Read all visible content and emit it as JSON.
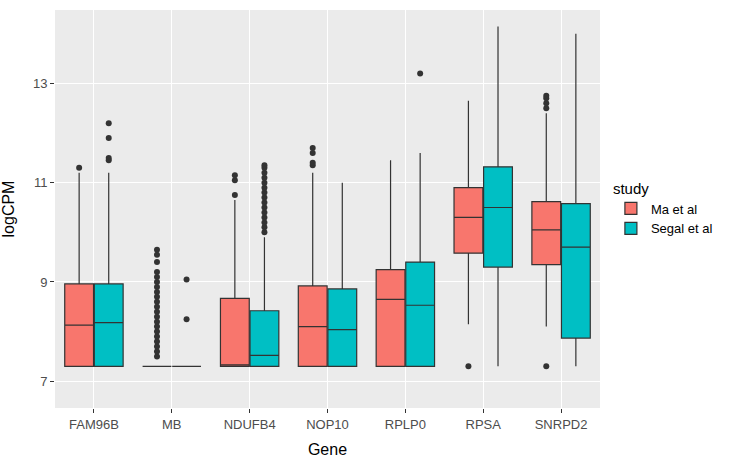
{
  "chart_data": {
    "type": "box",
    "x_label": "Gene",
    "y_label": "logCPM",
    "legend_title": "study",
    "legend": "right",
    "grid": true,
    "categories": [
      "FAM96B",
      "MB",
      "NDUFB4",
      "NOP10",
      "RPLP0",
      "RPSA",
      "SNRPD2"
    ],
    "ylim": [
      6.46,
      14.48
    ],
    "yticks": [
      7,
      9,
      11,
      13
    ],
    "series": [
      {
        "name": "Ma et al",
        "color": "#F8766D",
        "lowerfence": [
          7.3,
          7.3,
          7.3,
          7.3,
          7.3,
          8.15,
          8.1
        ],
        "q1": [
          7.3,
          7.3,
          7.3,
          7.3,
          7.3,
          9.58,
          9.35
        ],
        "median": [
          8.13,
          7.3,
          7.33,
          8.1,
          8.65,
          10.3,
          10.05
        ],
        "q3": [
          8.96,
          7.3,
          8.67,
          8.92,
          9.25,
          10.9,
          10.62
        ],
        "upperfence": [
          11.2,
          7.3,
          10.65,
          11.2,
          11.45,
          12.65,
          12.4
        ],
        "outliers": [
          [
            11.3
          ],
          [
            7.5,
            7.6,
            7.7,
            7.8,
            7.9,
            8.0,
            8.1,
            8.2,
            8.3,
            8.4,
            8.5,
            8.6,
            8.7,
            8.8,
            8.9,
            9.0,
            9.1,
            9.2,
            9.4,
            9.55,
            9.65
          ],
          [
            10.75,
            11.05,
            11.15
          ],
          [
            11.35,
            11.4,
            11.6,
            11.7
          ],
          [],
          [
            7.3
          ],
          [
            7.3,
            12.5,
            12.6,
            12.7,
            12.75
          ]
        ]
      },
      {
        "name": "Segal et al",
        "color": "#00BFC4",
        "lowerfence": [
          7.3,
          7.3,
          7.3,
          7.3,
          7.3,
          7.3,
          7.3
        ],
        "q1": [
          7.3,
          7.3,
          7.3,
          7.3,
          7.3,
          9.3,
          7.87
        ],
        "median": [
          8.18,
          7.3,
          7.52,
          8.04,
          8.53,
          10.5,
          9.7
        ],
        "q3": [
          8.96,
          7.3,
          8.42,
          8.86,
          9.4,
          11.32,
          10.58
        ],
        "upperfence": [
          11.2,
          7.3,
          9.9,
          11.0,
          11.6,
          14.15,
          14.0
        ],
        "outliers": [
          [
            11.45,
            11.5,
            11.9,
            12.2
          ],
          [
            8.25,
            9.05
          ],
          [
            10.0,
            10.1,
            10.2,
            10.3,
            10.4,
            10.5,
            10.6,
            10.7,
            10.8,
            10.9,
            11.0,
            11.1,
            11.2,
            11.3,
            11.35
          ],
          [],
          [
            13.2
          ],
          [],
          []
        ]
      }
    ]
  }
}
